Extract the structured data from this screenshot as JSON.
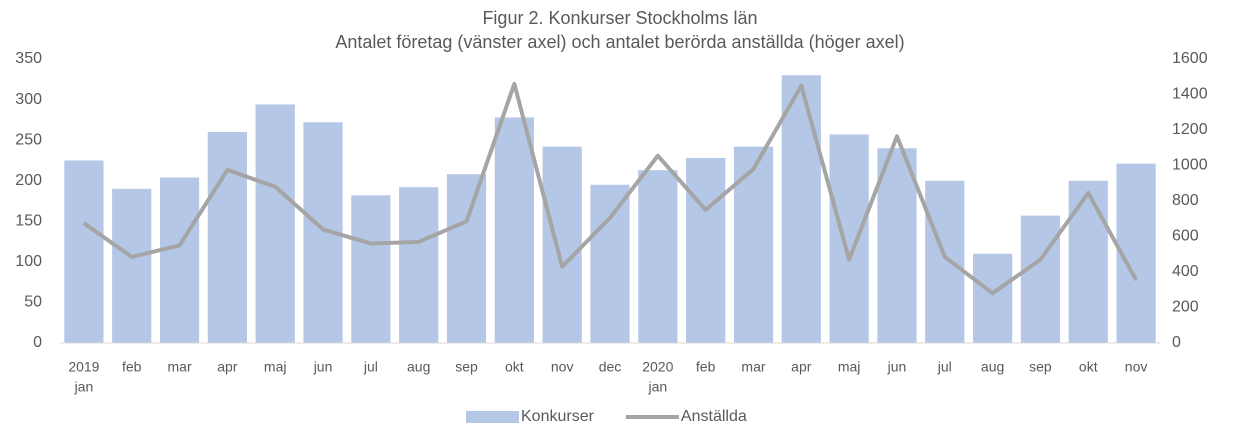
{
  "chart_data": {
    "type": "bar-line",
    "title": "Figur 2. Konkurser Stockholms län",
    "subtitle": "Antalet företag (vänster axel) och antalet berörda anställda (höger axel)",
    "categories": [
      [
        "2019",
        "jan"
      ],
      "feb",
      "mar",
      "apr",
      "maj",
      "jun",
      "jul",
      "aug",
      "sep",
      "okt",
      "nov",
      "dec",
      [
        "2020",
        "jan"
      ],
      "feb",
      "mar",
      "apr",
      "maj",
      "jun",
      "jul",
      "aug",
      "sep",
      "okt",
      "nov"
    ],
    "series": [
      {
        "name": "Konkurser",
        "type": "bar",
        "color": "#b4c7e7",
        "values": [
          225,
          190,
          204,
          260,
          294,
          272,
          182,
          192,
          208,
          278,
          242,
          195,
          213,
          228,
          242,
          330,
          257,
          240,
          200,
          110,
          157,
          200,
          221
        ]
      },
      {
        "name": "Anställda",
        "type": "line",
        "axis": "y2",
        "color": "#a5a5a5",
        "values": [
          675,
          485,
          550,
          975,
          880,
          640,
          560,
          570,
          685,
          1460,
          430,
          705,
          1055,
          750,
          980,
          1450,
          470,
          1165,
          485,
          280,
          470,
          845,
          355
        ]
      }
    ],
    "ylim": [
      0,
      350
    ],
    "yticks": [
      0,
      50,
      100,
      150,
      200,
      250,
      300,
      350
    ],
    "y2lim": [
      0,
      1600
    ],
    "y2ticks": [
      0,
      200,
      400,
      600,
      800,
      1000,
      1200,
      1400,
      1600
    ],
    "legend": "bottom"
  }
}
